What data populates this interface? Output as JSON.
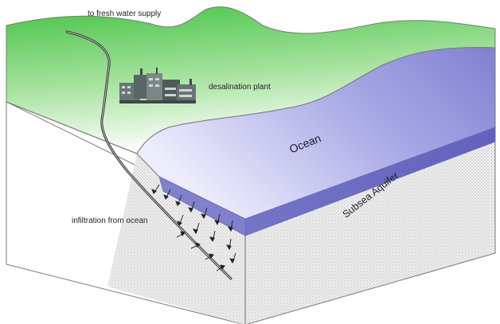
{
  "labels": {
    "fresh_water": "to fresh water supply",
    "desal_plant": "desalination plant",
    "ocean": "Ocean",
    "aquifer": "Subsea Aquifer",
    "infiltration": "infiltration from ocean"
  },
  "colors": {
    "land_green": "#47c447",
    "land_fade": "#ffffff",
    "ocean_top": "#8a8ad8",
    "ocean_light": "#ececfb",
    "ocean_side": "#6a6ac4",
    "sediment": "#e6e6e6",
    "outline": "#7a7a7a",
    "plant": "#5e6b6b"
  }
}
